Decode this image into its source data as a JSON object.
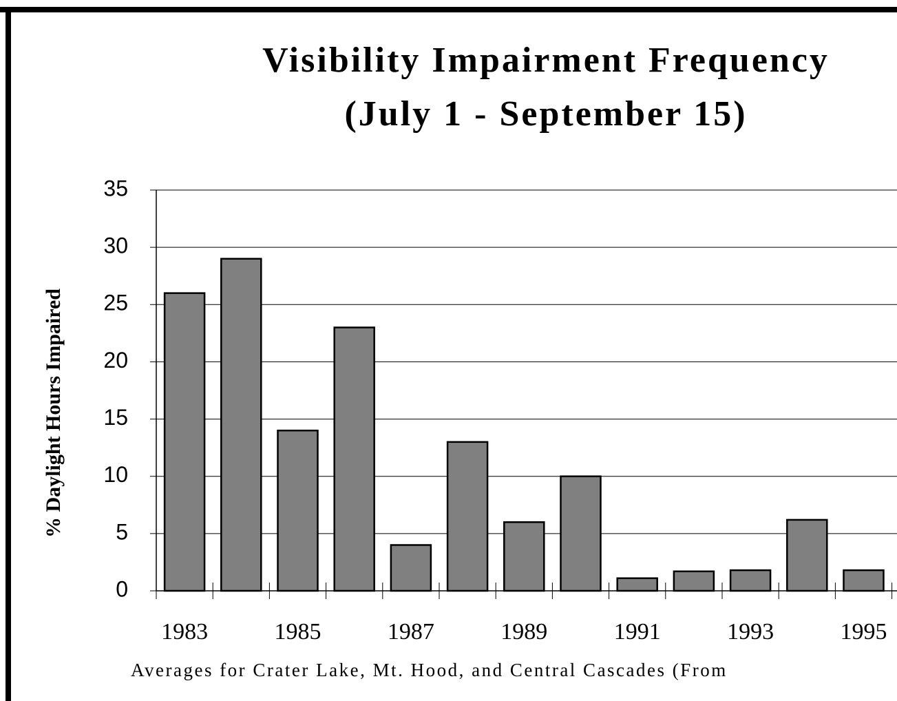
{
  "chart_data": {
    "type": "bar",
    "title": "Visibility Impairment Frequency",
    "subtitle": "(July 1 - September 15)",
    "y_label": "% Daylight Hours Impaired",
    "x_label": "Averages for Crater Lake, Mt. Hood, and Central Cascades  (From",
    "categories": [
      "1983",
      null,
      "1985",
      null,
      "1987",
      null,
      "1989",
      null,
      "1991",
      null,
      "1993",
      null,
      "1995"
    ],
    "values": [
      26,
      29,
      14,
      23,
      4,
      13,
      6,
      10,
      1.1,
      1.7,
      1.8,
      6.2,
      1.8
    ],
    "color": "#808080",
    "ylim": [
      0,
      35
    ],
    "yticks": [
      0,
      5,
      10,
      15,
      20,
      25,
      30,
      35
    ],
    "grid": true
  }
}
